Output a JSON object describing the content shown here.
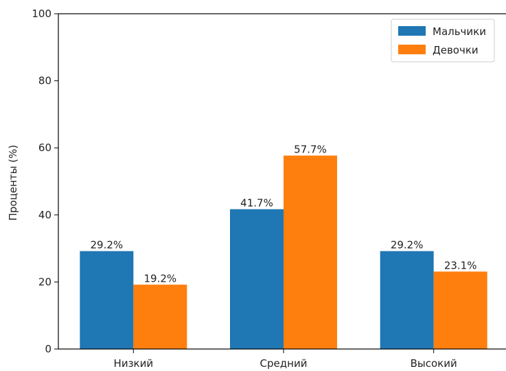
{
  "chart_data": {
    "type": "bar",
    "title": "",
    "xlabel": "",
    "ylabel": "Проценты (%)",
    "ylim": [
      0,
      100
    ],
    "yticks": [
      "0",
      "20",
      "40",
      "60",
      "80",
      "100"
    ],
    "categories": [
      "Низкий",
      "Средний",
      "Высокий"
    ],
    "series": [
      {
        "name": "Мальчики",
        "values": [
          29.2,
          41.7,
          29.2
        ],
        "labels": [
          "29.2%",
          "41.7%",
          "29.2%"
        ],
        "color": "#1f77b4"
      },
      {
        "name": "Девочки",
        "values": [
          19.2,
          57.7,
          23.1
        ],
        "labels": [
          "19.2%",
          "57.7%",
          "23.1%"
        ],
        "color": "#ff7f0e"
      }
    ],
    "legend_position": "top-right",
    "grid": false
  }
}
